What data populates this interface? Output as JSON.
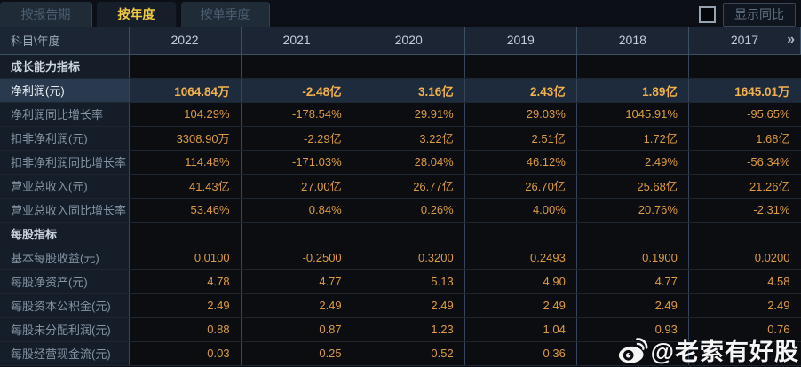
{
  "tabs": [
    {
      "label": "按报告期",
      "active": false
    },
    {
      "label": "按年度",
      "active": true
    },
    {
      "label": "按单季度",
      "active": false
    }
  ],
  "controls": {
    "checkbox_checked": false,
    "checkbox_label": "显示同比"
  },
  "table": {
    "corner_header": "科目\\年度",
    "year_columns": [
      "2022",
      "2021",
      "2020",
      "2019",
      "2018",
      "2017"
    ],
    "more_icon": "»",
    "rows": [
      {
        "type": "section",
        "label": "成长能力指标"
      },
      {
        "type": "data",
        "label": "净利润(元)",
        "highlight": true,
        "values": [
          "1064.84万",
          "-2.48亿",
          "3.16亿",
          "2.43亿",
          "1.89亿",
          "1645.01万"
        ]
      },
      {
        "type": "data",
        "label": "净利润同比增长率",
        "values": [
          "104.29%",
          "-178.54%",
          "29.91%",
          "29.03%",
          "1045.91%",
          "-95.65%"
        ]
      },
      {
        "type": "data",
        "label": "扣非净利润(元)",
        "values": [
          "3308.90万",
          "-2.29亿",
          "3.22亿",
          "2.51亿",
          "1.72亿",
          "1.68亿"
        ]
      },
      {
        "type": "data",
        "label": "扣非净利润同比增长率",
        "values": [
          "114.48%",
          "-171.03%",
          "28.04%",
          "46.12%",
          "2.49%",
          "-56.34%"
        ]
      },
      {
        "type": "data",
        "label": "营业总收入(元)",
        "values": [
          "41.43亿",
          "27.00亿",
          "26.77亿",
          "26.70亿",
          "25.68亿",
          "21.26亿"
        ]
      },
      {
        "type": "data",
        "label": "营业总收入同比增长率",
        "values": [
          "53.46%",
          "0.84%",
          "0.26%",
          "4.00%",
          "20.76%",
          "-2.31%"
        ]
      },
      {
        "type": "section",
        "label": "每股指标"
      },
      {
        "type": "data",
        "label": "基本每股收益(元)",
        "values": [
          "0.0100",
          "-0.2500",
          "0.3200",
          "0.2493",
          "0.1900",
          "0.0200"
        ]
      },
      {
        "type": "data",
        "label": "每股净资产(元)",
        "values": [
          "4.78",
          "4.77",
          "5.13",
          "4.90",
          "4.77",
          "4.58"
        ]
      },
      {
        "type": "data",
        "label": "每股资本公积金(元)",
        "values": [
          "2.49",
          "2.49",
          "2.49",
          "2.49",
          "2.49",
          "2.49"
        ]
      },
      {
        "type": "data",
        "label": "每股未分配利润(元)",
        "values": [
          "0.88",
          "0.87",
          "1.23",
          "1.04",
          "0.93",
          "0.76"
        ]
      },
      {
        "type": "data",
        "label": "每股经营现金流(元)",
        "values": [
          "0.03",
          "0.25",
          "0.52",
          "0.36",
          "",
          ""
        ]
      }
    ]
  },
  "watermark": {
    "text": "@老索有好股",
    "icon": "weibo-logo"
  },
  "colors": {
    "value_gold": "#dc9b3e",
    "highlight_value_gold": "#f3b14c",
    "active_tab_text": "#f0c843",
    "highlight_row_bg": "#1d2b3d",
    "header_row_bg": "#1b2533",
    "label_cell_bg": "#141d28",
    "data_cell_bg": "#0b0d11",
    "watermark_white": "#ffffff"
  }
}
